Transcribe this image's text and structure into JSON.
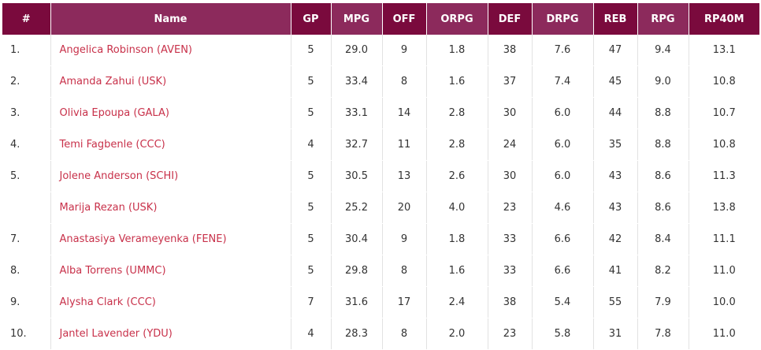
{
  "colors": {
    "header_dark": "#7a0a3d",
    "header_light": "#8c2a5c",
    "name_link": "#c8314a"
  },
  "columns": [
    "#",
    "Name",
    "GP",
    "MPG",
    "OFF",
    "ORPG",
    "DEF",
    "DRPG",
    "REB",
    "RPG",
    "RP40M"
  ],
  "rows": [
    {
      "rank": "1.",
      "name": "Angelica Robinson (AVEN)",
      "gp": "5",
      "mpg": "29.0",
      "off": "9",
      "orpg": "1.8",
      "def": "38",
      "drpg": "7.6",
      "reb": "47",
      "rpg": "9.4",
      "rp40m": "13.1"
    },
    {
      "rank": "2.",
      "name": "Amanda Zahui (USK)",
      "gp": "5",
      "mpg": "33.4",
      "off": "8",
      "orpg": "1.6",
      "def": "37",
      "drpg": "7.4",
      "reb": "45",
      "rpg": "9.0",
      "rp40m": "10.8"
    },
    {
      "rank": "3.",
      "name": "Olivia Epoupa (GALA)",
      "gp": "5",
      "mpg": "33.1",
      "off": "14",
      "orpg": "2.8",
      "def": "30",
      "drpg": "6.0",
      "reb": "44",
      "rpg": "8.8",
      "rp40m": "10.7"
    },
    {
      "rank": "4.",
      "name": "Temi Fagbenle (CCC)",
      "gp": "4",
      "mpg": "32.7",
      "off": "11",
      "orpg": "2.8",
      "def": "24",
      "drpg": "6.0",
      "reb": "35",
      "rpg": "8.8",
      "rp40m": "10.8"
    },
    {
      "rank": "5.",
      "name": "Jolene Anderson (SCHI)",
      "gp": "5",
      "mpg": "30.5",
      "off": "13",
      "orpg": "2.6",
      "def": "30",
      "drpg": "6.0",
      "reb": "43",
      "rpg": "8.6",
      "rp40m": "11.3"
    },
    {
      "rank": "",
      "name": "Marija Rezan (USK)",
      "gp": "5",
      "mpg": "25.2",
      "off": "20",
      "orpg": "4.0",
      "def": "23",
      "drpg": "4.6",
      "reb": "43",
      "rpg": "8.6",
      "rp40m": "13.8"
    },
    {
      "rank": "7.",
      "name": "Anastasiya Verameyenka (FENE)",
      "gp": "5",
      "mpg": "30.4",
      "off": "9",
      "orpg": "1.8",
      "def": "33",
      "drpg": "6.6",
      "reb": "42",
      "rpg": "8.4",
      "rp40m": "11.1"
    },
    {
      "rank": "8.",
      "name": "Alba Torrens (UMMC)",
      "gp": "5",
      "mpg": "29.8",
      "off": "8",
      "orpg": "1.6",
      "def": "33",
      "drpg": "6.6",
      "reb": "41",
      "rpg": "8.2",
      "rp40m": "11.0"
    },
    {
      "rank": "9.",
      "name": "Alysha Clark (CCC)",
      "gp": "7",
      "mpg": "31.6",
      "off": "17",
      "orpg": "2.4",
      "def": "38",
      "drpg": "5.4",
      "reb": "55",
      "rpg": "7.9",
      "rp40m": "10.0"
    },
    {
      "rank": "10.",
      "name": "Jantel Lavender (YDU)",
      "gp": "4",
      "mpg": "28.3",
      "off": "8",
      "orpg": "2.0",
      "def": "23",
      "drpg": "5.8",
      "reb": "31",
      "rpg": "7.8",
      "rp40m": "11.0"
    }
  ]
}
